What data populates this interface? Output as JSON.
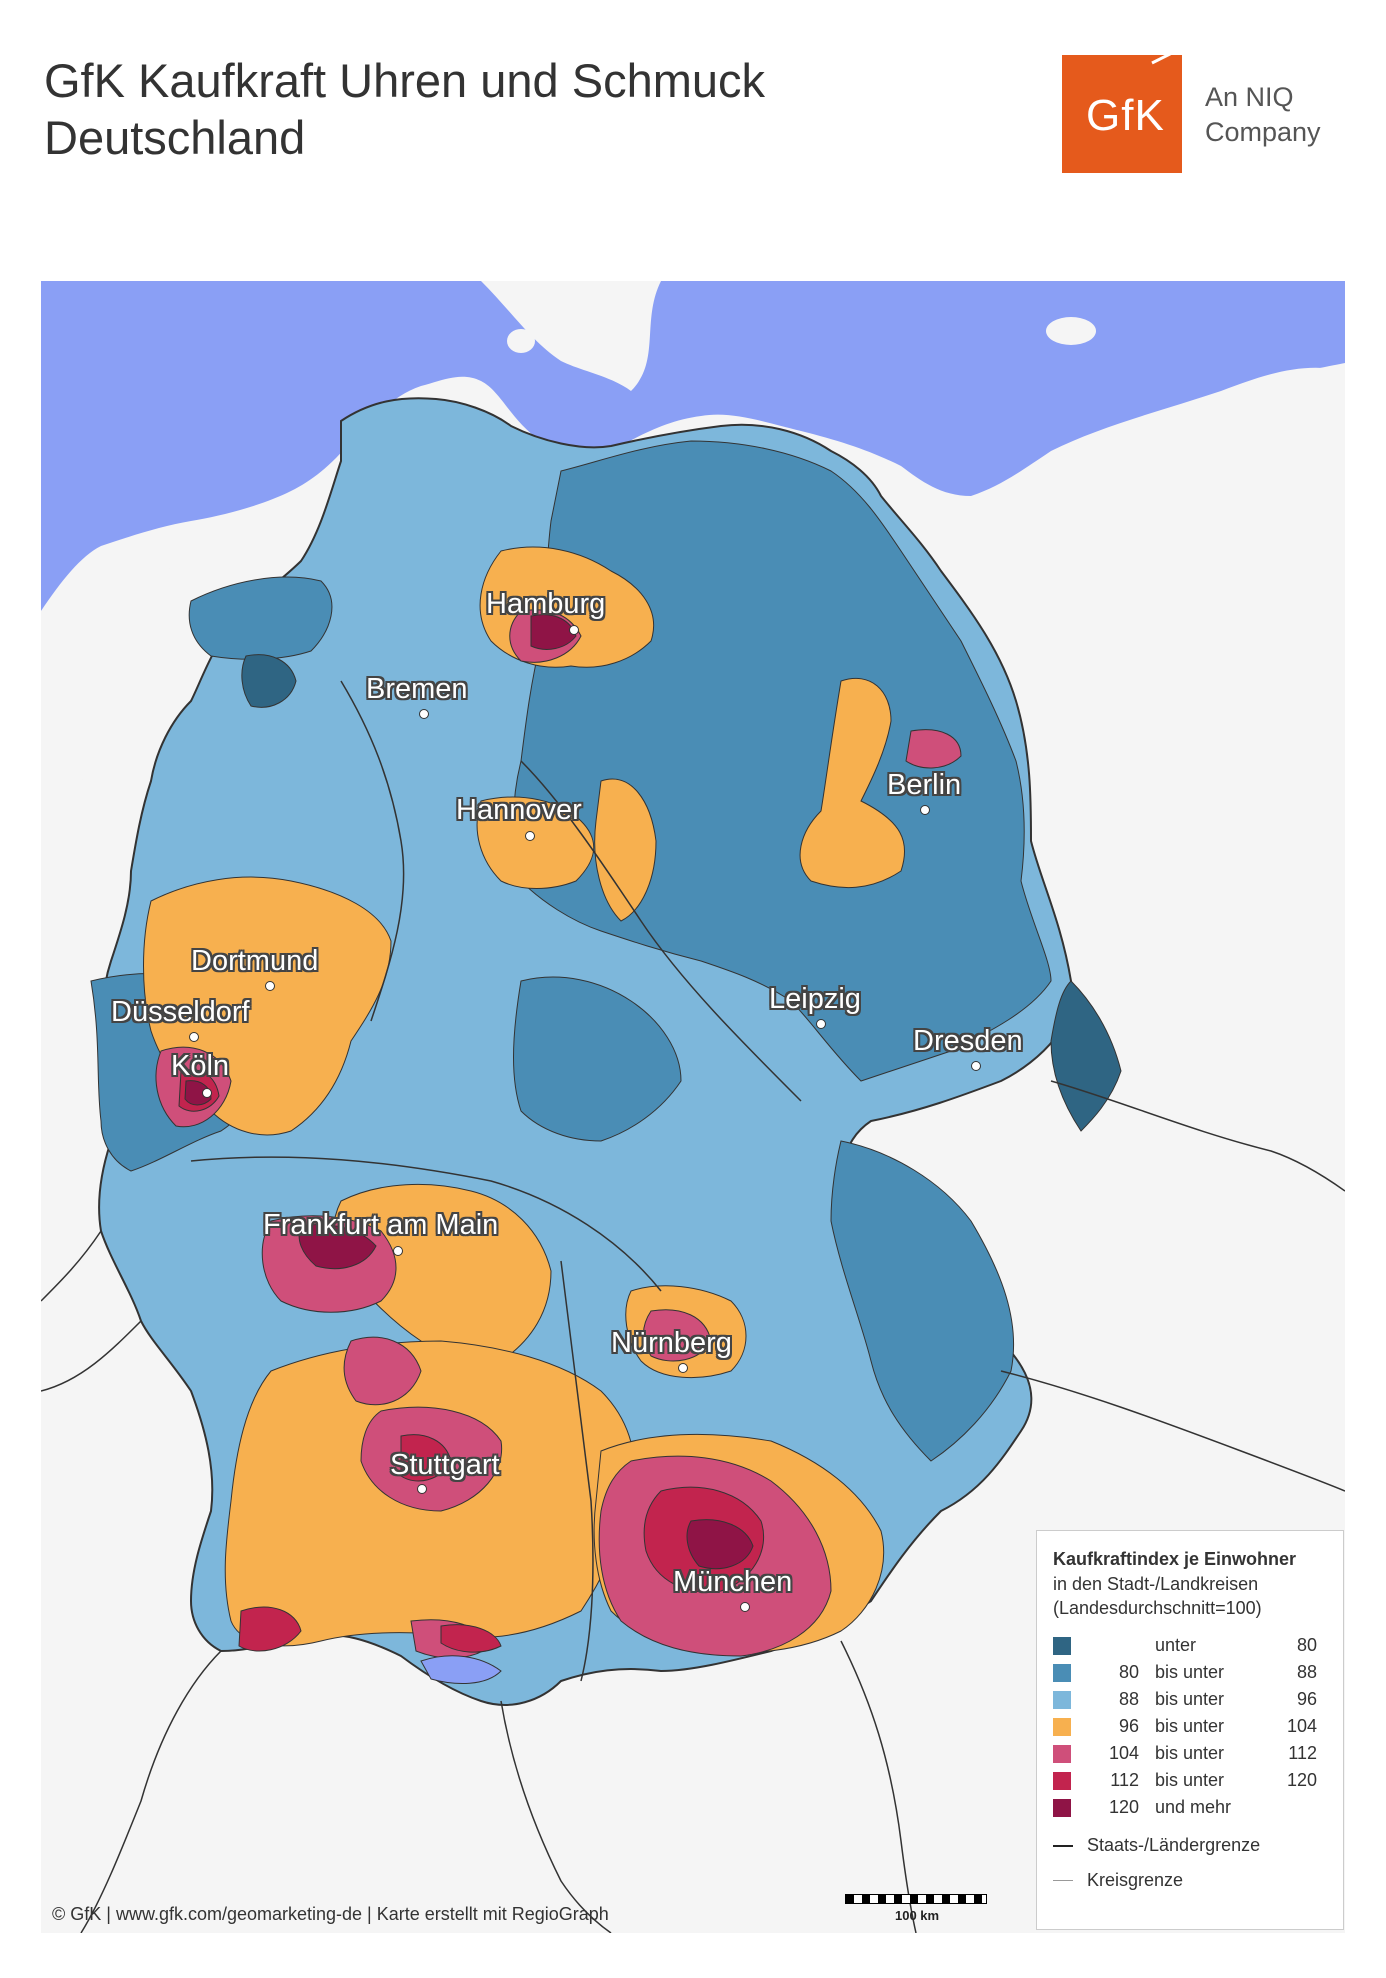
{
  "title": {
    "line1": "GfK Kaufkraft Uhren und Schmuck",
    "line2": "Deutschland"
  },
  "logo": {
    "text": "GfK",
    "tagline_line1": "An NIQ",
    "tagline_line2": "Company",
    "color": "#e55a1c"
  },
  "map": {
    "water_color": "#8a9ff5",
    "land_color": "#f5f5f5",
    "cities": [
      {
        "name": "Hamburg"
      },
      {
        "name": "Bremen"
      },
      {
        "name": "Hannover"
      },
      {
        "name": "Berlin"
      },
      {
        "name": "Dortmund"
      },
      {
        "name": "Düsseldorf"
      },
      {
        "name": "Köln"
      },
      {
        "name": "Leipzig"
      },
      {
        "name": "Dresden"
      },
      {
        "name": "Frankfurt am Main"
      },
      {
        "name": "Nürnberg"
      },
      {
        "name": "Stuttgart"
      },
      {
        "name": "München"
      }
    ]
  },
  "legend": {
    "title": "Kaufkraftindex je Einwohner",
    "subtitle_line1": "in den Stadt-/Landkreisen",
    "subtitle_line2": "(Landesdurchschnitt=100)",
    "classes": [
      {
        "from": "",
        "op": "unter",
        "to": "80",
        "color": "#2f6583"
      },
      {
        "from": "80",
        "op": "bis unter",
        "to": "88",
        "color": "#4a8db5"
      },
      {
        "from": "88",
        "op": "bis unter",
        "to": "96",
        "color": "#7db7db"
      },
      {
        "from": "96",
        "op": "bis unter",
        "to": "104",
        "color": "#f7b04f"
      },
      {
        "from": "104",
        "op": "bis unter",
        "to": "112",
        "color": "#cf4f7a"
      },
      {
        "from": "112",
        "op": "bis unter",
        "to": "120",
        "color": "#c2244e"
      },
      {
        "from": "120",
        "op": "und mehr",
        "to": "",
        "color": "#8f1446"
      }
    ],
    "line_state": "Staats-/Ländergrenze",
    "line_district": "Kreisgrenze"
  },
  "scalebar": {
    "label": "100 km"
  },
  "source": "© GfK | www.gfk.com/geomarketing-de | Karte erstellt mit RegioGraph"
}
